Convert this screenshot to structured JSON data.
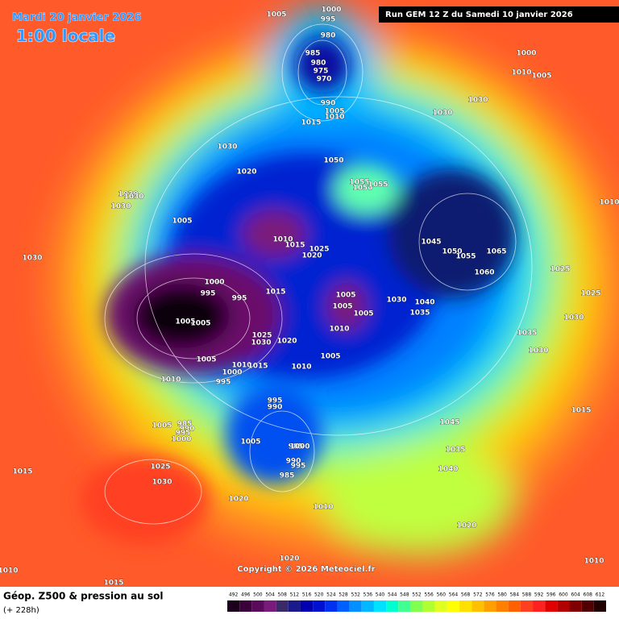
{
  "header": {
    "date": "Mardi 20 janvier 2026",
    "time": "1:00 locale",
    "run": "Run GEM 12 Z du Samedi 10 janvier 2026"
  },
  "map": {
    "pressure_labels": [
      "1005",
      "1000",
      "995",
      "980",
      "985",
      "980",
      "975",
      "970",
      "990",
      "1005",
      "1010",
      "1015",
      "1000",
      "1010",
      "1005",
      "1030",
      "1030",
      "1030",
      "1050",
      "1020",
      "1055",
      "1050",
      "1055",
      "1030",
      "1030",
      "1030",
      "1005",
      "1010",
      "1015",
      "1025",
      "1020",
      "1045",
      "1050",
      "1055",
      "1065",
      "1060",
      "1010",
      "1030",
      "1025",
      "1025",
      "1000",
      "995",
      "995",
      "1015",
      "1005",
      "1005",
      "1005",
      "1030",
      "1040",
      "1035",
      "1030",
      "1005",
      "1005",
      "1010",
      "1025",
      "1030",
      "1020",
      "1035",
      "1030",
      "1005",
      "1010",
      "1015",
      "1010",
      "1005",
      "1000",
      "995",
      "1010",
      "995",
      "990",
      "1045",
      "1015",
      "1005",
      "985",
      "990",
      "995",
      "1000",
      "1005",
      "985",
      "1000",
      "1035",
      "990",
      "995",
      "985",
      "1040",
      "1015",
      "1025",
      "1030",
      "1020",
      "1010",
      "1020",
      "1020",
      "1010",
      "1010",
      "1015"
    ]
  },
  "copyright": "Copyright © 2026 Meteociel.fr",
  "legend": {
    "title": "Géop. Z500 & pression au sol",
    "subtitle": "(+ 228h)",
    "ticks": [
      492,
      496,
      500,
      504,
      508,
      512,
      516,
      520,
      524,
      528,
      532,
      536,
      540,
      544,
      548,
      552,
      556,
      560,
      564,
      568,
      572,
      576,
      580,
      584,
      588,
      592,
      596,
      600,
      604,
      608,
      612
    ],
    "colors": [
      "#1a001a",
      "#3a003a",
      "#5a0a5a",
      "#7a1a7a",
      "#3a2a6a",
      "#1a1a8a",
      "#0000b0",
      "#0010d0",
      "#0030f0",
      "#0060ff",
      "#0090ff",
      "#00b8ff",
      "#00e0ff",
      "#00ffd0",
      "#40ff90",
      "#80ff50",
      "#b0ff30",
      "#e0ff20",
      "#ffff00",
      "#ffe000",
      "#ffc000",
      "#ffa000",
      "#ff8000",
      "#ff6000",
      "#ff4020",
      "#ff2020",
      "#e00000",
      "#b00000",
      "#800000",
      "#500000",
      "#200000"
    ]
  }
}
